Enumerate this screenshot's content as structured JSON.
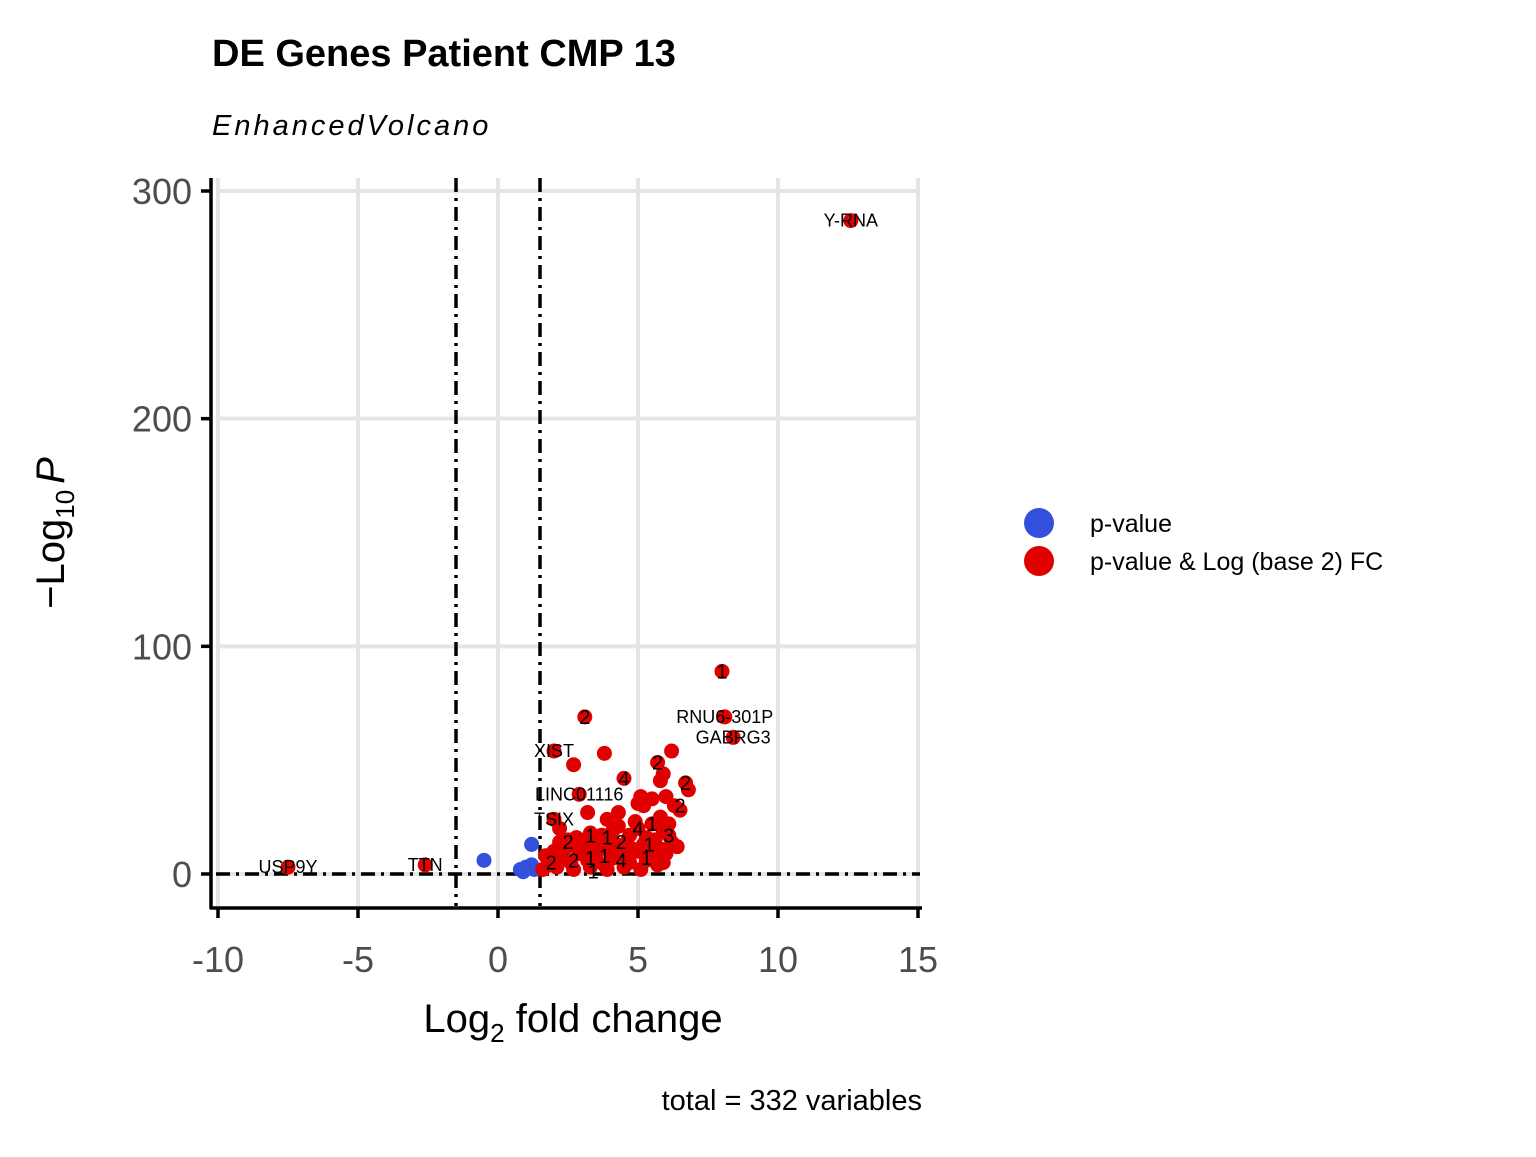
{
  "chart_data": {
    "type": "scatter",
    "title": "DE Genes Patient CMP 13",
    "subtitle": "EnhancedVolcano",
    "xlabel_main": "Log",
    "xlabel_sub": "2",
    "xlabel_rest": " fold change",
    "ylabel_pre": "−Log",
    "ylabel_sub": "10",
    "ylabel_var": "P",
    "caption": "total = 332 variables",
    "xlim": [
      -10,
      15
    ],
    "ylim": [
      0,
      300
    ],
    "x_ticks": [
      -10,
      -5,
      0,
      5,
      10,
      15
    ],
    "x_tick_labels": [
      "-10",
      "-5",
      "0",
      "5",
      "10",
      "15"
    ],
    "y_ticks": [
      0,
      100,
      200,
      300
    ],
    "y_tick_labels": [
      "0",
      "100",
      "200",
      "300"
    ],
    "fc_cutoff": 1.5,
    "p_cutoff_line": 0,
    "grid": true,
    "legend_position": "right",
    "colors": {
      "p_value": "#3250dc",
      "p_value_fc": "#e00000"
    },
    "series": [
      {
        "name": "p-value",
        "color": "#3250dc",
        "points": [
          [
            -0.5,
            6
          ],
          [
            1.2,
            13
          ],
          [
            0.8,
            2
          ],
          [
            1.0,
            3
          ],
          [
            1.2,
            4
          ],
          [
            1.3,
            2
          ],
          [
            0.9,
            1
          ]
        ]
      },
      {
        "name": "p-value & Log (base 2) FC",
        "color": "#e00000",
        "points": [
          [
            12.6,
            287
          ],
          [
            8.0,
            89
          ],
          [
            8.1,
            69
          ],
          [
            8.4,
            60
          ],
          [
            3.1,
            69
          ],
          [
            3.8,
            53
          ],
          [
            2.0,
            54
          ],
          [
            2.7,
            48
          ],
          [
            6.2,
            54
          ],
          [
            5.7,
            49
          ],
          [
            5.8,
            41
          ],
          [
            5.9,
            44
          ],
          [
            4.5,
            42
          ],
          [
            6.7,
            40
          ],
          [
            6.8,
            37
          ],
          [
            2.9,
            35
          ],
          [
            3.2,
            27
          ],
          [
            5.1,
            34
          ],
          [
            5.0,
            31
          ],
          [
            5.2,
            30
          ],
          [
            5.5,
            33
          ],
          [
            6.0,
            34
          ],
          [
            6.3,
            30
          ],
          [
            6.5,
            28
          ],
          [
            4.3,
            27
          ],
          [
            3.9,
            24
          ],
          [
            5.8,
            25
          ],
          [
            6.1,
            22
          ],
          [
            2.0,
            24
          ],
          [
            2.2,
            20
          ],
          [
            2.5,
            15
          ],
          [
            2.8,
            16
          ],
          [
            3.3,
            18
          ],
          [
            3.6,
            14
          ],
          [
            3.9,
            16
          ],
          [
            4.1,
            19
          ],
          [
            4.4,
            12
          ],
          [
            4.7,
            17
          ],
          [
            5.0,
            20
          ],
          [
            5.3,
            16
          ],
          [
            5.6,
            15
          ],
          [
            5.9,
            19
          ],
          [
            6.2,
            14
          ],
          [
            6.4,
            12
          ],
          [
            2.0,
            10
          ],
          [
            2.3,
            7
          ],
          [
            2.6,
            5
          ],
          [
            2.9,
            9
          ],
          [
            3.2,
            6
          ],
          [
            3.5,
            8
          ],
          [
            3.8,
            4
          ],
          [
            4.1,
            7
          ],
          [
            4.4,
            9
          ],
          [
            4.7,
            5
          ],
          [
            5.0,
            10
          ],
          [
            5.3,
            6
          ],
          [
            5.6,
            8
          ],
          [
            5.9,
            5
          ],
          [
            1.7,
            8
          ],
          [
            1.9,
            4
          ],
          [
            2.1,
            3
          ],
          [
            2.4,
            11
          ],
          [
            2.7,
            2
          ],
          [
            3.0,
            12
          ],
          [
            3.3,
            3
          ],
          [
            3.6,
            11
          ],
          [
            3.9,
            2
          ],
          [
            4.2,
            13
          ],
          [
            4.5,
            3
          ],
          [
            4.8,
            11
          ],
          [
            5.1,
            2
          ],
          [
            5.4,
            12
          ],
          [
            5.7,
            4
          ],
          [
            6.0,
            9
          ],
          [
            1.6,
            2
          ],
          [
            1.8,
            6
          ],
          [
            2.2,
            14
          ],
          [
            2.6,
            13
          ],
          [
            3.1,
            15
          ],
          [
            3.4,
            10
          ],
          [
            3.7,
            17
          ],
          [
            4.0,
            10
          ],
          [
            4.3,
            21
          ],
          [
            4.6,
            14
          ],
          [
            4.9,
            23
          ],
          [
            5.2,
            13
          ],
          [
            5.5,
            22
          ],
          [
            5.8,
            11
          ],
          [
            6.1,
            17
          ],
          [
            -7.5,
            3
          ],
          [
            -2.6,
            4
          ]
        ]
      }
    ],
    "gene_labels": [
      {
        "text": "Y-RNA",
        "x": 12.6,
        "y": 287
      },
      {
        "text": "RNU6-301P",
        "x": 8.1,
        "y": 69
      },
      {
        "text": "GABRG3",
        "x": 8.4,
        "y": 60
      },
      {
        "text": "XIST",
        "x": 2.0,
        "y": 54
      },
      {
        "text": "LINC01116",
        "x": 2.9,
        "y": 35
      },
      {
        "text": "TSIX",
        "x": 2.0,
        "y": 24
      },
      {
        "text": "USP9Y",
        "x": -7.5,
        "y": 3
      },
      {
        "text": "TTN",
        "x": -2.6,
        "y": 4
      }
    ],
    "cluster_labels": [
      {
        "text": "1",
        "x": 8.0,
        "y": 89
      },
      {
        "text": "2",
        "x": 3.1,
        "y": 69
      },
      {
        "text": "2",
        "x": 5.7,
        "y": 49
      },
      {
        "text": "4",
        "x": 4.5,
        "y": 42
      },
      {
        "text": "2",
        "x": 6.7,
        "y": 40
      },
      {
        "text": "2",
        "x": 6.5,
        "y": 30
      },
      {
        "text": "4",
        "x": 5.0,
        "y": 20
      },
      {
        "text": "1",
        "x": 5.5,
        "y": 22
      },
      {
        "text": "3",
        "x": 6.1,
        "y": 17
      },
      {
        "text": "2",
        "x": 2.5,
        "y": 14
      },
      {
        "text": "1",
        "x": 3.3,
        "y": 17
      },
      {
        "text": "1",
        "x": 3.9,
        "y": 16
      },
      {
        "text": "2",
        "x": 4.4,
        "y": 14
      },
      {
        "text": "1",
        "x": 5.4,
        "y": 13
      },
      {
        "text": "2",
        "x": 1.9,
        "y": 5
      },
      {
        "text": "2",
        "x": 2.7,
        "y": 6
      },
      {
        "text": "1",
        "x": 3.3,
        "y": 7
      },
      {
        "text": "1",
        "x": 3.8,
        "y": 8
      },
      {
        "text": "4",
        "x": 4.4,
        "y": 6
      },
      {
        "text": "1",
        "x": 5.3,
        "y": 7
      },
      {
        "text": "1",
        "x": 3.4,
        "y": 1
      }
    ]
  }
}
